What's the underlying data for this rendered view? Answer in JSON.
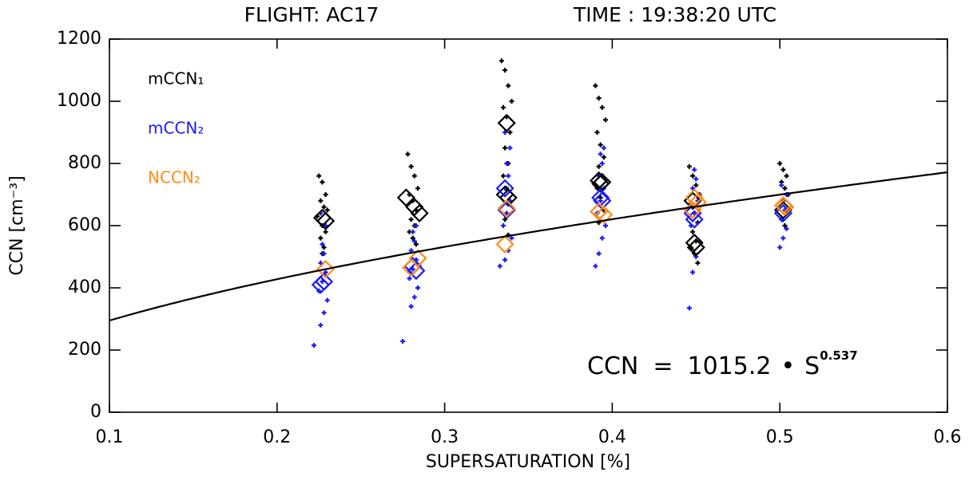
{
  "chart_data": {
    "type": "scatter",
    "title": "FLIGHT: AC17",
    "subtitle": "TIME : 19:38:20 UTC",
    "x_label": "SUPERSATURATION [%]",
    "y_label": "CCN [cm⁻³]",
    "xlim": [
      0.1,
      0.6
    ],
    "xticks": [
      0.1,
      0.2,
      0.3,
      0.4,
      0.5,
      0.6
    ],
    "ylim": [
      0,
      1200
    ],
    "yticks": [
      0,
      200,
      400,
      600,
      800,
      1000,
      1200
    ],
    "fit": {
      "label": "CCN",
      "operator": "=",
      "coefficient": 1015.2,
      "times": "•",
      "variable": "S",
      "exponent": 0.537,
      "color": "#000000"
    },
    "series": [
      {
        "name": "mCCN₁",
        "color": "#000000",
        "x": [
          0.225,
          0.227,
          0.229,
          0.226,
          0.228,
          0.23,
          0.224,
          0.227,
          0.229,
          0.226,
          0.228,
          0.227,
          0.278,
          0.28,
          0.282,
          0.284,
          0.279,
          0.281,
          0.283,
          0.28,
          0.282,
          0.279,
          0.281,
          0.283,
          0.334,
          0.336,
          0.338,
          0.34,
          0.335,
          0.337,
          0.339,
          0.336,
          0.338,
          0.335,
          0.337,
          0.339,
          0.336,
          0.338,
          0.39,
          0.392,
          0.394,
          0.396,
          0.391,
          0.393,
          0.395,
          0.392,
          0.394,
          0.391,
          0.393,
          0.395,
          0.392,
          0.446,
          0.448,
          0.45,
          0.452,
          0.447,
          0.449,
          0.451,
          0.448,
          0.45,
          0.447,
          0.449,
          0.451,
          0.5,
          0.502,
          0.504,
          0.501,
          0.503,
          0.505,
          0.502,
          0.504,
          0.501,
          0.503
        ],
        "y": [
          760,
          740,
          700,
          680,
          660,
          650,
          630,
          600,
          580,
          560,
          530,
          510,
          830,
          790,
          760,
          720,
          700,
          680,
          650,
          620,
          600,
          580,
          560,
          540,
          1130,
          1100,
          1050,
          1000,
          980,
          950,
          900,
          850,
          800,
          760,
          720,
          680,
          620,
          570,
          1050,
          1010,
          980,
          940,
          900,
          860,
          820,
          790,
          760,
          720,
          690,
          650,
          610,
          790,
          760,
          730,
          700,
          670,
          640,
          610,
          580,
          550,
          530,
          510,
          480,
          800,
          780,
          760,
          740,
          720,
          700,
          680,
          650,
          620,
          600
        ],
        "mean_x": [
          0.227,
          0.229,
          0.277,
          0.282,
          0.285,
          0.337,
          0.336,
          0.338,
          0.392,
          0.393,
          0.394,
          0.448,
          0.449,
          0.45,
          0.503,
          0.502
        ],
        "mean_y": [
          625,
          615,
          690,
          660,
          640,
          930,
          700,
          690,
          745,
          735,
          740,
          680,
          545,
          530,
          660,
          650
        ]
      },
      {
        "name": "mCCN₂",
        "color": "#1a1aff",
        "x": [
          0.222,
          0.226,
          0.228,
          0.23,
          0.225,
          0.227,
          0.229,
          0.226,
          0.228,
          0.227,
          0.229,
          0.226,
          0.275,
          0.28,
          0.282,
          0.284,
          0.279,
          0.281,
          0.283,
          0.28,
          0.282,
          0.281,
          0.283,
          0.333,
          0.336,
          0.338,
          0.34,
          0.335,
          0.337,
          0.339,
          0.336,
          0.338,
          0.337,
          0.339,
          0.336,
          0.39,
          0.392,
          0.394,
          0.396,
          0.391,
          0.393,
          0.395,
          0.392,
          0.394,
          0.393,
          0.395,
          0.446,
          0.448,
          0.45,
          0.452,
          0.447,
          0.449,
          0.451,
          0.448,
          0.45,
          0.449,
          0.5,
          0.502,
          0.504,
          0.501,
          0.503,
          0.502,
          0.504,
          0.501
        ],
        "y": [
          215,
          280,
          320,
          360,
          390,
          420,
          450,
          480,
          510,
          540,
          600,
          640,
          228,
          340,
          370,
          400,
          430,
          460,
          490,
          520,
          550,
          580,
          600,
          470,
          490,
          520,
          560,
          600,
          640,
          680,
          720,
          760,
          800,
          850,
          900,
          470,
          510,
          560,
          600,
          640,
          680,
          720,
          760,
          800,
          830,
          850,
          335,
          450,
          500,
          550,
          600,
          640,
          680,
          720,
          750,
          780,
          530,
          560,
          590,
          620,
          650,
          680,
          700,
          730
        ],
        "mean_x": [
          0.228,
          0.226,
          0.281,
          0.283,
          0.336,
          0.337,
          0.393,
          0.394,
          0.448,
          0.449,
          0.502
        ],
        "mean_y": [
          420,
          410,
          470,
          455,
          720,
          650,
          690,
          680,
          640,
          620,
          640
        ]
      },
      {
        "name": "NCCN₂",
        "color": "#ff8c1a",
        "x": [],
        "y": [],
        "mean_x": [
          0.229,
          0.28,
          0.284,
          0.337,
          0.336,
          0.392,
          0.395,
          0.449,
          0.451,
          0.448,
          0.503,
          0.502
        ],
        "mean_y": [
          460,
          465,
          495,
          655,
          540,
          645,
          635,
          690,
          675,
          650,
          660,
          665
        ]
      }
    ]
  }
}
